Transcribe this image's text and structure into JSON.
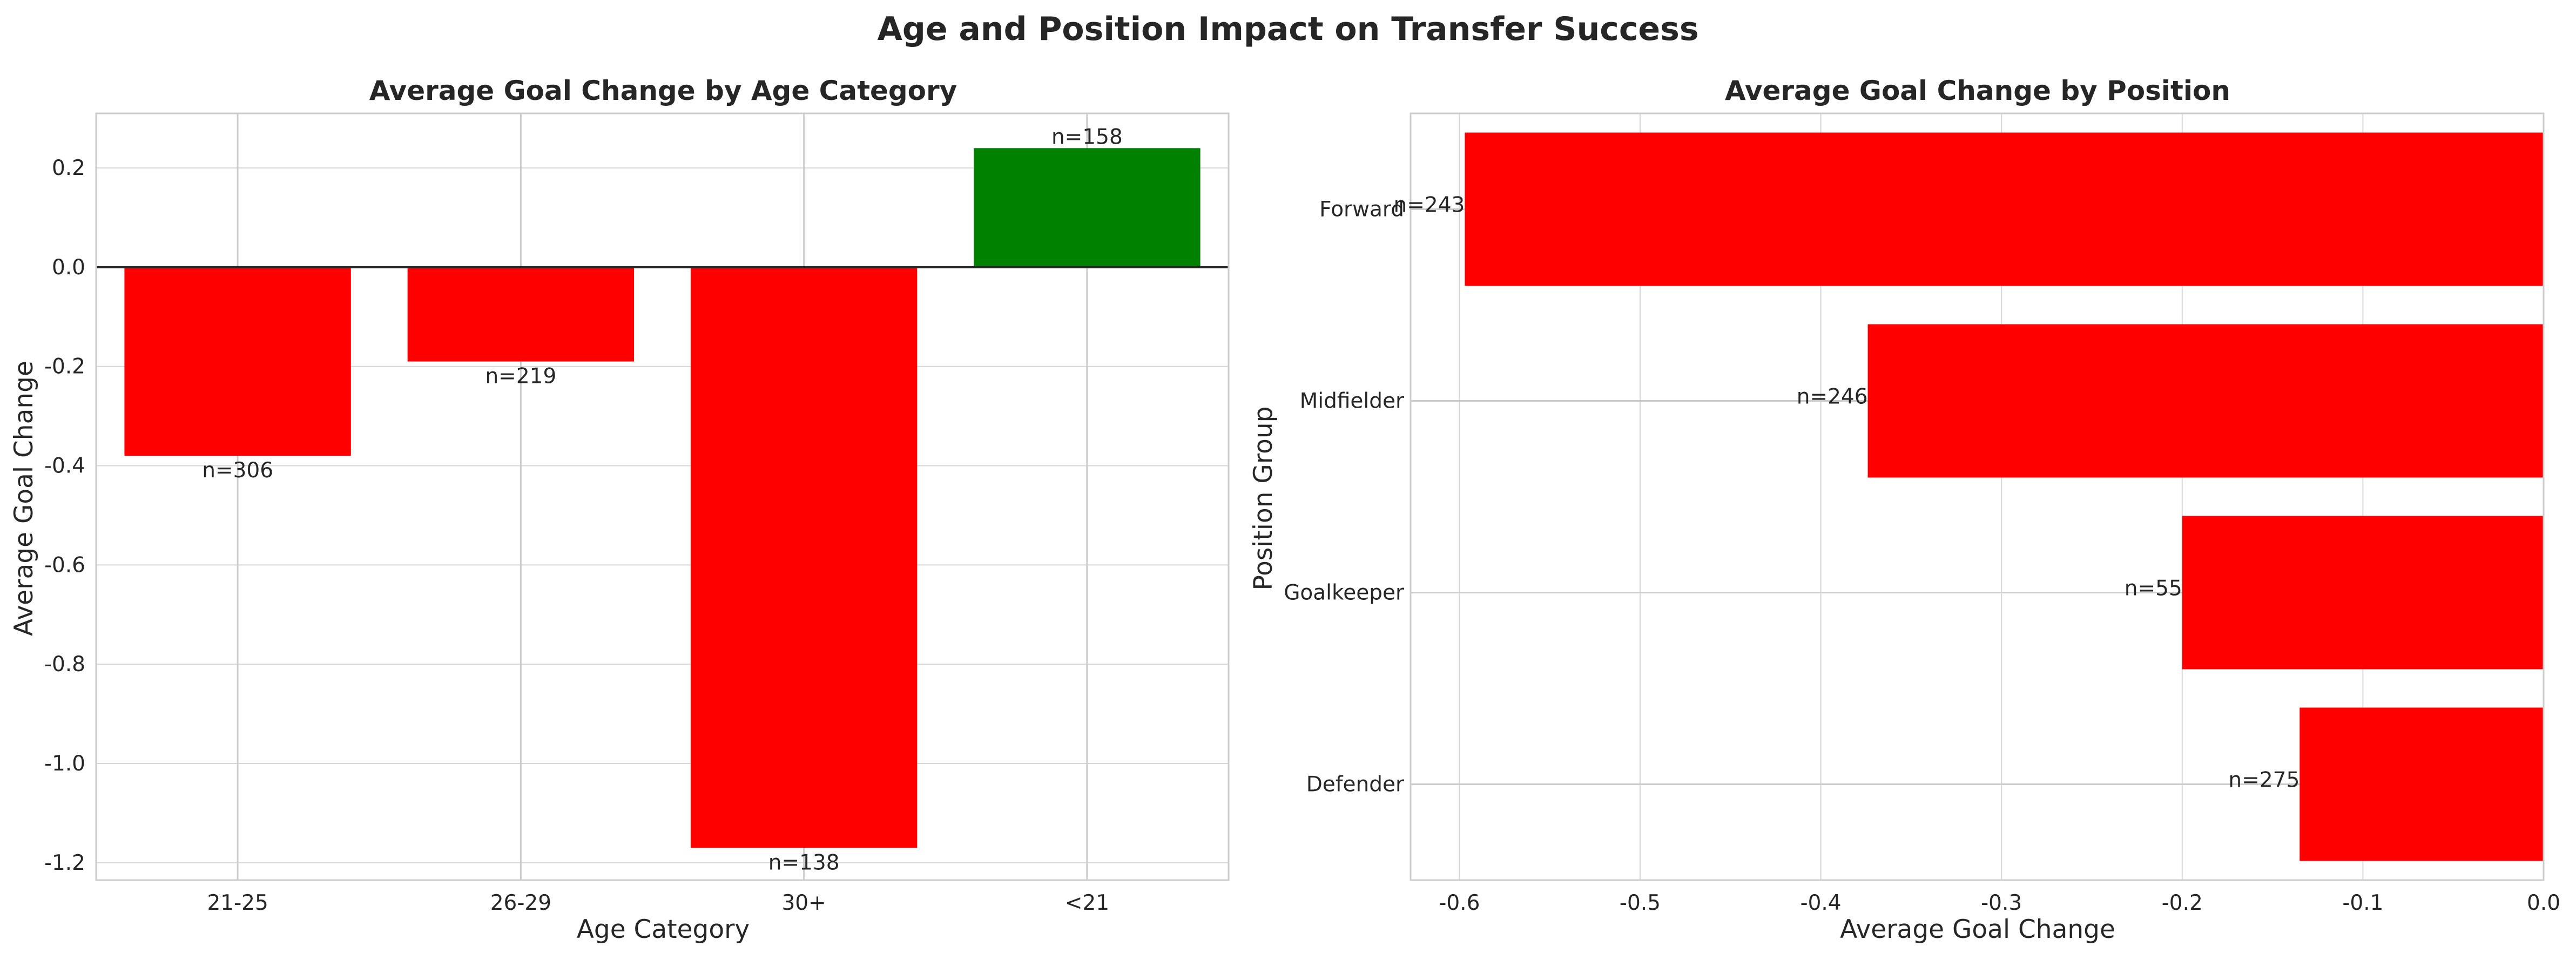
{
  "suptitle": "Age and Position Impact on Transfer Success",
  "colors": {
    "negative": "#ff0000",
    "positive": "#008000"
  },
  "chart_data": [
    {
      "type": "bar",
      "orientation": "vertical",
      "title": "Average Goal Change by Age Category",
      "xlabel": "Age Category",
      "ylabel": "Average Goal Change",
      "categories": [
        "21-25",
        "26-29",
        "30+",
        "<21"
      ],
      "values": [
        -0.38,
        -0.19,
        -1.17,
        0.24
      ],
      "labels": [
        "n=306",
        "n=219",
        "n=138",
        "n=158"
      ],
      "ylim": [
        -1.235,
        0.31
      ],
      "yticks": [
        0.2,
        0.0,
        -0.2,
        -0.4,
        -0.6,
        -0.8,
        -1.0,
        -1.2
      ],
      "ytick_labels": [
        "0.2",
        "0.0",
        "-0.2",
        "-0.4",
        "-0.6",
        "-0.8",
        "-1.0",
        "-1.2"
      ],
      "grid": true
    },
    {
      "type": "bar",
      "orientation": "horizontal",
      "title": "Average Goal Change by Position",
      "xlabel": "Average Goal Change",
      "ylabel": "Position Group",
      "categories": [
        "Forward",
        "Midfielder",
        "Goalkeeper",
        "Defender"
      ],
      "values": [
        -0.597,
        -0.374,
        -0.2,
        -0.135
      ],
      "labels": [
        "n=243",
        "n=246",
        "n=55",
        "n=275"
      ],
      "xlim": [
        -0.627,
        0.0
      ],
      "xticks": [
        -0.6,
        -0.5,
        -0.4,
        -0.3,
        -0.2,
        -0.1,
        0.0
      ],
      "xtick_labels": [
        "-0.6",
        "-0.5",
        "-0.4",
        "-0.3",
        "-0.2",
        "-0.1",
        "0.0"
      ],
      "grid": true
    }
  ]
}
